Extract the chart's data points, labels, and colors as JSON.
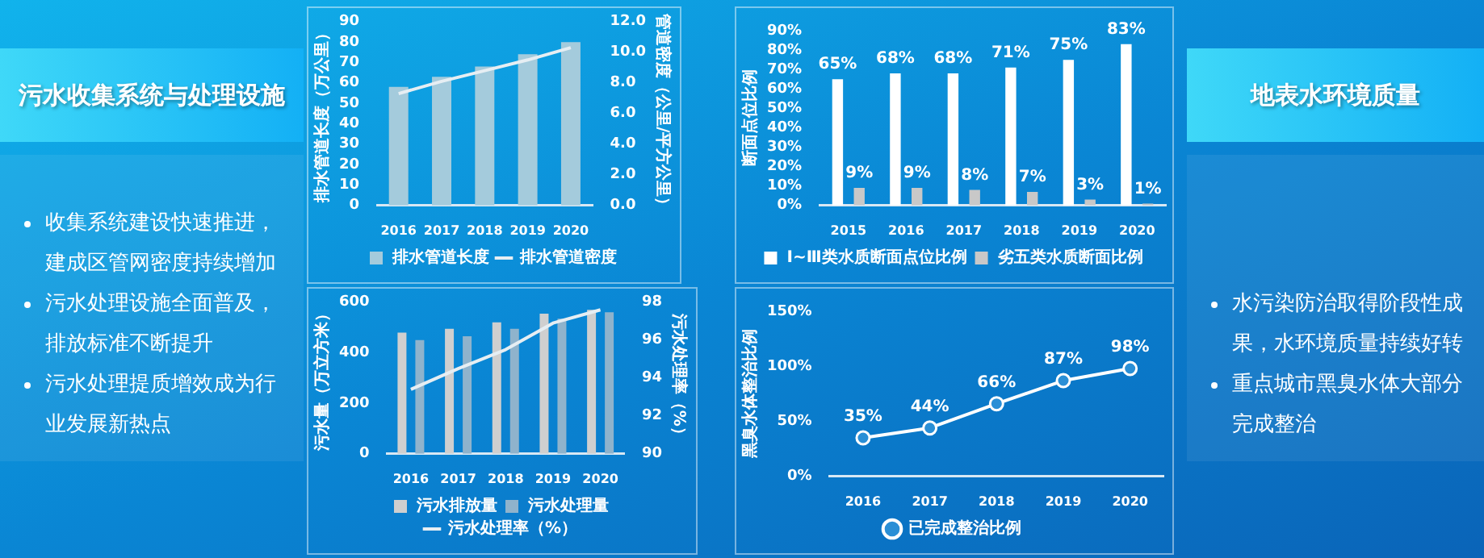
{
  "chart_data": [
    {
      "type": "other",
      "title": "污水收集系统与处理设施",
      "annotations": [
        "收集系统建设快速推进，建成区管网密度持续增加",
        "污水处理设施全面普及，排放标准不断提升",
        "污水处理提质增效成为行业发展新热点"
      ]
    },
    {
      "type": "bar",
      "categories": [
        "2016",
        "2017",
        "2018",
        "2019",
        "2020"
      ],
      "ylabel": "排水管道长度（万公里）",
      "y2label": "管道密度（公里/平方公里）",
      "ylim": [
        0,
        90
      ],
      "yticks": [
        0,
        10,
        20,
        30,
        40,
        50,
        60,
        70,
        80,
        90
      ],
      "y2lim": [
        0,
        12
      ],
      "y2ticks": [
        {
          "value": 0,
          "label": "0.0"
        },
        {
          "value": 2,
          "label": "2.0"
        },
        {
          "value": 4,
          "label": "4.0"
        },
        {
          "value": 6,
          "label": "6.0"
        },
        {
          "value": 8,
          "label": "8.0"
        },
        {
          "value": 10,
          "label": "10.0"
        },
        {
          "value": 12,
          "label": "12.0"
        }
      ],
      "legend": "bottom",
      "series": [
        {
          "name": "排水管道长度",
          "type": "bar",
          "color": "#a4cbdc",
          "values": [
            58,
            63,
            68,
            74,
            80
          ]
        },
        {
          "name": "排水管道密度",
          "type": "line",
          "axis": "y2",
          "color": "#e6eef3",
          "marker": "none",
          "values": [
            7.3,
            8.1,
            8.8,
            9.5,
            10.3
          ]
        }
      ]
    },
    {
      "type": "bar",
      "categories": [
        "2015",
        "2016",
        "2017",
        "2018",
        "2019",
        "2020"
      ],
      "ylabel": "断面点位比例",
      "ylim": [
        0,
        90
      ],
      "yticks": [
        {
          "value": 0,
          "label": "0%"
        },
        {
          "value": 10,
          "label": "10%"
        },
        {
          "value": 20,
          "label": "20%"
        },
        {
          "value": 30,
          "label": "30%"
        },
        {
          "value": 40,
          "label": "40%"
        },
        {
          "value": 50,
          "label": "50%"
        },
        {
          "value": 60,
          "label": "60%"
        },
        {
          "value": 70,
          "label": "70%"
        },
        {
          "value": 80,
          "label": "80%"
        },
        {
          "value": 90,
          "label": "90%"
        }
      ],
      "legend": "bottom",
      "series": [
        {
          "name": "Ⅰ~Ⅲ类水质断面点位比例",
          "type": "bar",
          "color": "#ffffff",
          "values": [
            65,
            68,
            68,
            71,
            75,
            83
          ],
          "value_labels": [
            "65%",
            "68%",
            "68%",
            "71%",
            "75%",
            "83%"
          ]
        },
        {
          "name": "劣五类水质断面比例",
          "type": "bar",
          "color": "#c8c8c8",
          "values": [
            9,
            9,
            8,
            7,
            3,
            1
          ],
          "value_labels": [
            "9%",
            "9%",
            "8%",
            "7%",
            "3%",
            "1%"
          ]
        }
      ]
    },
    {
      "type": "other",
      "title": "地表水环境质量",
      "annotations": [
        "水污染防治取得阶段性成果，水环境质量持续好转",
        "重点城市黑臭水体大部分完成整治"
      ]
    },
    {
      "type": "bar",
      "categories": [
        "2016",
        "2017",
        "2018",
        "2019",
        "2020"
      ],
      "ylabel": "污水量（万立方米）",
      "y2label": "污水处理率（%）",
      "ylim": [
        0,
        600
      ],
      "yticks": [
        0,
        200,
        400,
        600
      ],
      "y2lim": [
        90,
        98
      ],
      "y2ticks": [
        90,
        92,
        94,
        96,
        98
      ],
      "legend": "bottom",
      "series": [
        {
          "name": "污水排放量",
          "type": "bar",
          "color": "#cfcfcf",
          "values": [
            480,
            495,
            520,
            555,
            570
          ]
        },
        {
          "name": "污水处理量",
          "type": "bar",
          "color": "#8fb3cc",
          "values": [
            450,
            465,
            495,
            535,
            560
          ]
        },
        {
          "name": "污水处理率（%）",
          "type": "line",
          "axis": "y2",
          "color": "#e6eef3",
          "marker": "none",
          "values": [
            93.4,
            94.5,
            95.5,
            96.9,
            97.6
          ]
        }
      ]
    },
    {
      "type": "line",
      "categories": [
        "2016",
        "2017",
        "2018",
        "2019",
        "2020"
      ],
      "ylabel": "黑臭水体整治比例",
      "ylim": [
        0,
        150
      ],
      "yticks": [
        {
          "value": 0,
          "label": "0%"
        },
        {
          "value": 50,
          "label": "50%"
        },
        {
          "value": 100,
          "label": "100%"
        },
        {
          "value": 150,
          "label": "150%"
        }
      ],
      "legend": "bottom",
      "series": [
        {
          "name": "已完成整治比例",
          "type": "line",
          "color": "#ffffff",
          "marker": "circle",
          "values": [
            35,
            44,
            66,
            87,
            98
          ],
          "value_labels": [
            "35%",
            "44%",
            "66%",
            "87%",
            "98%"
          ]
        }
      ]
    }
  ]
}
